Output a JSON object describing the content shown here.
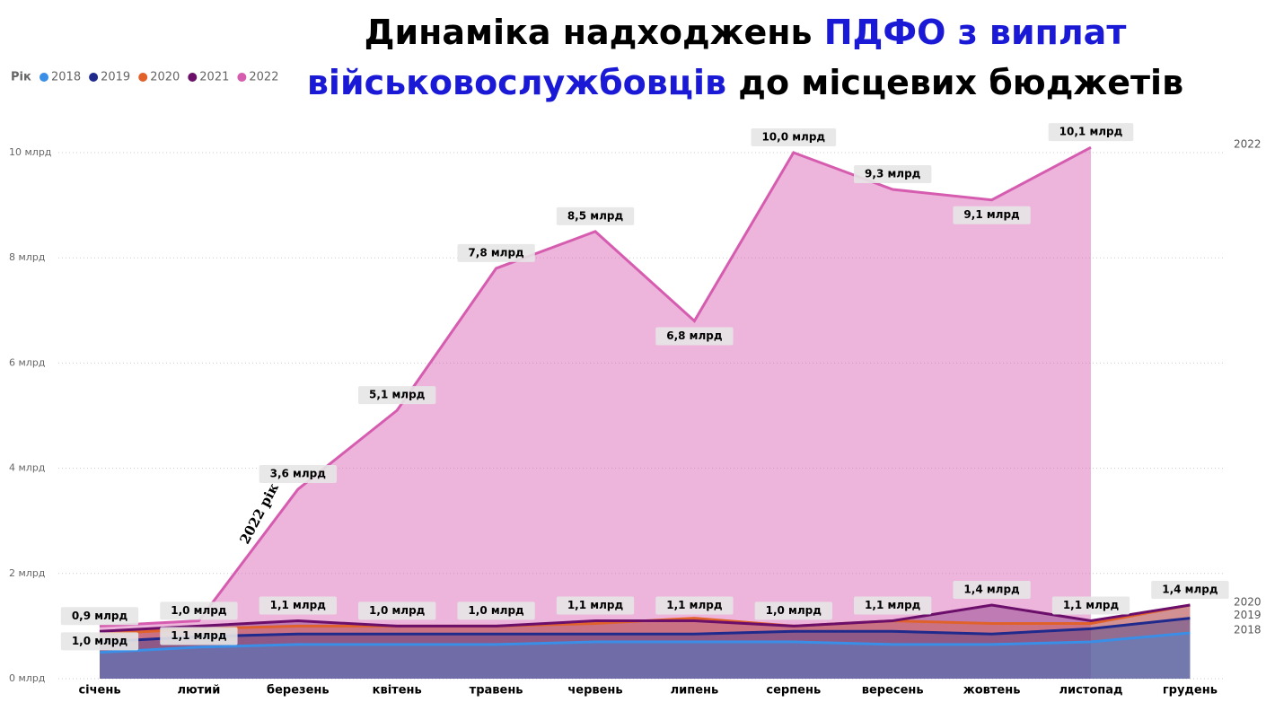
{
  "chart_data": {
    "type": "area",
    "title": [
      "Динаміка надходжень",
      "ПДФО з виплат",
      "військовослужбовців",
      "до місцевих бюджетів"
    ],
    "title_colors": [
      "#000000",
      "#1a1ad6",
      "#1a1ad6",
      "#000000"
    ],
    "legend_title": "Рік",
    "annotation": "2022 рік",
    "categories": [
      "січень",
      "лютий",
      "березень",
      "квітень",
      "травень",
      "червень",
      "липень",
      "серпень",
      "вересень",
      "жовтень",
      "листопад",
      "грудень"
    ],
    "ylim": [
      0,
      10.5
    ],
    "yticks": [
      {
        "value": 0,
        "label": "0 млрд"
      },
      {
        "value": 2,
        "label": "2 млрд"
      },
      {
        "value": 4,
        "label": "4 млрд"
      },
      {
        "value": 6,
        "label": "6 млрд"
      },
      {
        "value": 8,
        "label": "8 млрд"
      },
      {
        "value": 10,
        "label": "10 млрд"
      }
    ],
    "grid": true,
    "series": [
      {
        "name": "2018",
        "color": "#3a8ee6",
        "end_label": true,
        "values": [
          0.5,
          0.6,
          0.65,
          0.65,
          0.65,
          0.7,
          0.7,
          0.7,
          0.65,
          0.65,
          0.7,
          0.87
        ]
      },
      {
        "name": "2019",
        "color": "#1f2a8c",
        "end_label": true,
        "values": [
          0.7,
          0.8,
          0.85,
          0.85,
          0.85,
          0.85,
          0.85,
          0.9,
          0.9,
          0.85,
          0.95,
          1.15
        ]
      },
      {
        "name": "2020",
        "color": "#e0622a",
        "end_label": true,
        "values": [
          0.85,
          0.95,
          1.0,
          1.0,
          1.0,
          1.05,
          1.15,
          1.0,
          1.1,
          1.05,
          1.05,
          1.4
        ]
      },
      {
        "name": "2021",
        "color": "#6b0f6b",
        "end_label": false,
        "values": [
          0.9,
          1.0,
          1.1,
          1.0,
          1.0,
          1.1,
          1.1,
          1.0,
          1.1,
          1.4,
          1.1,
          1.4
        ],
        "value_labels": [
          "0,9 млрд",
          "1,0 млрд",
          "1,1 млрд",
          "1,0 млрд",
          "1,0 млрд",
          "1,1 млрд",
          "1,1 млрд",
          "1,0 млрд",
          "1,1 млрд",
          "1,4 млрд",
          "1,1 млрд",
          "1,4 млрд"
        ]
      },
      {
        "name": "2022",
        "color": "#d65cb0",
        "end_label": true,
        "values": [
          1.0,
          1.1,
          3.6,
          5.1,
          7.8,
          8.5,
          6.8,
          10.0,
          9.3,
          9.1,
          10.1,
          null
        ],
        "value_labels": [
          "1,0 млрд",
          "1,1 млрд",
          "3,6 млрд",
          "5,1 млрд",
          "7,8 млрд",
          "8,5 млрд",
          "6,8 млрд",
          "10,0 млрд",
          "9,3 млрд",
          "9,1 млрд",
          "10,1 млрд",
          null
        ]
      }
    ]
  }
}
